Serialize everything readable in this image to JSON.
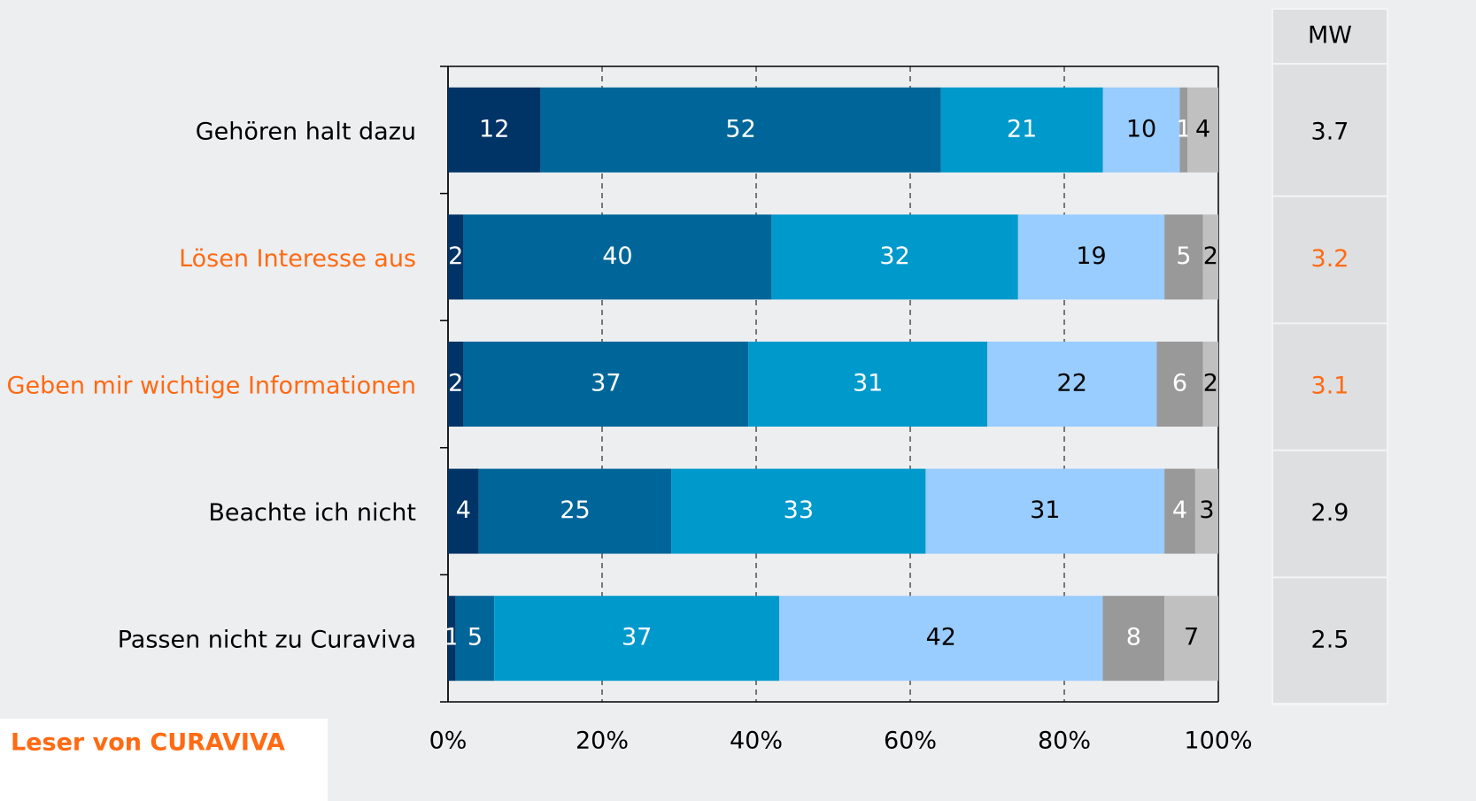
{
  "chart_data": {
    "type": "stacked_barh",
    "categories": [
      "Gehören halt dazu",
      "Lösen Interesse aus",
      "Geben mir wichtige Informationen",
      "Beachte ich nicht",
      "Passen nicht zu Curaviva"
    ],
    "category_colors": [
      "#000000",
      "#ff6a13",
      "#ff6a13",
      "#000000",
      "#000000"
    ],
    "series": [
      {
        "color": "#003366",
        "label_color": "#ffffff",
        "values": [
          12,
          2,
          2,
          4,
          1
        ]
      },
      {
        "color": "#006699",
        "label_color": "#ffffff",
        "values": [
          52,
          40,
          37,
          25,
          5
        ]
      },
      {
        "color": "#0099cc",
        "label_color": "#ffffff",
        "values": [
          21,
          32,
          31,
          33,
          37
        ]
      },
      {
        "color": "#99ccff",
        "label_color": "#000000",
        "values": [
          10,
          19,
          22,
          31,
          42
        ]
      },
      {
        "color": "#999999",
        "label_color": "#ffffff",
        "values": [
          1,
          5,
          6,
          4,
          8
        ]
      },
      {
        "color": "#c0c0c0",
        "label_color": "#000000",
        "values": [
          4,
          2,
          2,
          3,
          7
        ]
      }
    ],
    "xlim": [
      0,
      100
    ],
    "xticks": [
      {
        "value": 0,
        "label": "0%"
      },
      {
        "value": 20,
        "label": "20%"
      },
      {
        "value": 40,
        "label": "40%"
      },
      {
        "value": 60,
        "label": "60%"
      },
      {
        "value": 80,
        "label": "80%"
      },
      {
        "value": 100,
        "label": "100%"
      }
    ],
    "grid": true,
    "mw_header": "MW",
    "mw_values": [
      3.7,
      3.2,
      3.1,
      2.9,
      2.5
    ],
    "group_label": "Leser von CURAVIVA",
    "group_label_color": "#ff6a13"
  }
}
